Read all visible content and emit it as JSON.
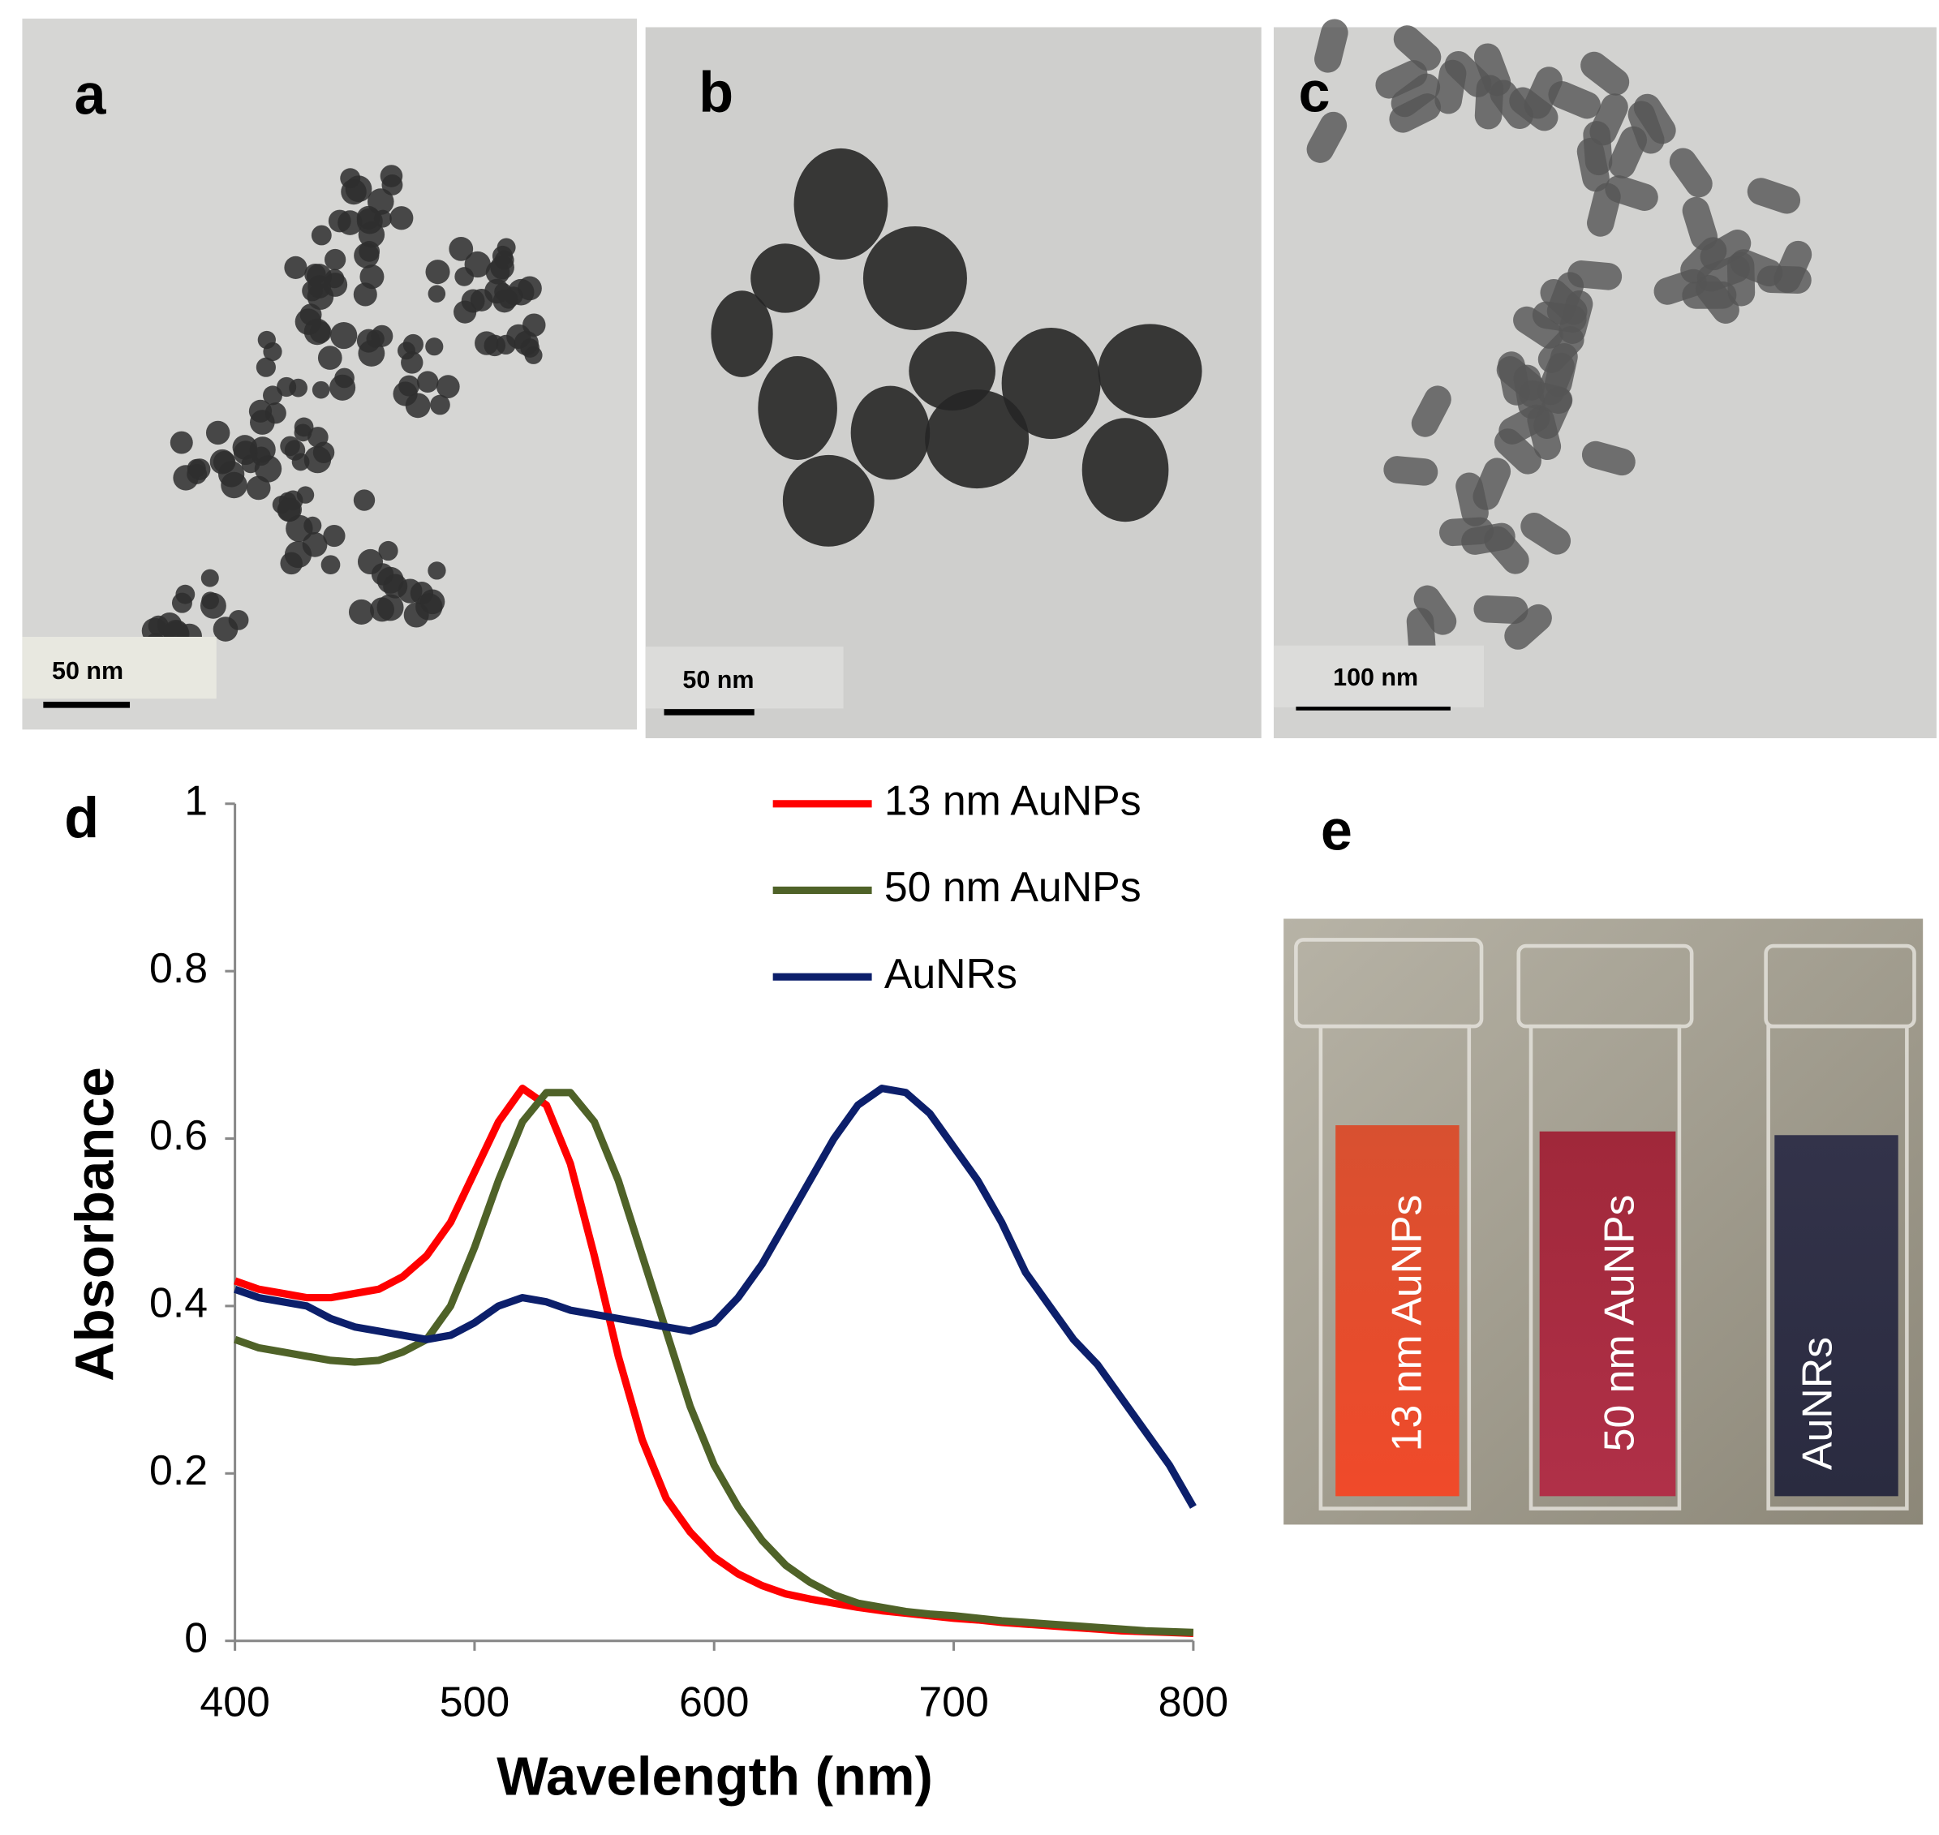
{
  "panels": [
    {
      "label": "a",
      "scale_bar": "50 nm"
    },
    {
      "label": "b",
      "scale_bar": "50 nm"
    },
    {
      "label": "c",
      "scale_bar": "100 nm"
    }
  ],
  "photo": {
    "label": "e",
    "samples": [
      "13 nm AuNPs",
      "50 nm AuNPs",
      "AuNRs"
    ]
  },
  "chart_data": {
    "type": "line",
    "panel_label": "d",
    "x_label": "Wavelength (nm)",
    "y_label": "Absorbance",
    "x": [
      400,
      410,
      420,
      430,
      440,
      450,
      460,
      470,
      480,
      490,
      500,
      510,
      520,
      530,
      540,
      550,
      560,
      570,
      580,
      590,
      600,
      610,
      620,
      630,
      640,
      650,
      660,
      670,
      680,
      690,
      700,
      710,
      720,
      730,
      740,
      750,
      760,
      770,
      780,
      790,
      800
    ],
    "series": [
      {
        "name": "13 nm AuNPs",
        "color": "#ff0000",
        "values": [
          0.43,
          0.42,
          0.415,
          0.41,
          0.41,
          0.415,
          0.42,
          0.435,
          0.46,
          0.5,
          0.56,
          0.62,
          0.66,
          0.64,
          0.57,
          0.46,
          0.34,
          0.24,
          0.17,
          0.13,
          0.1,
          0.08,
          0.066,
          0.056,
          0.05,
          0.045,
          0.04,
          0.036,
          0.033,
          0.03,
          0.027,
          0.025,
          0.022,
          0.02,
          0.018,
          0.016,
          0.014,
          0.012,
          0.011,
          0.01,
          0.009
        ]
      },
      {
        "name": "50 nm AuNPs",
        "color": "#4f6228",
        "values": [
          0.36,
          0.35,
          0.345,
          0.34,
          0.335,
          0.333,
          0.335,
          0.345,
          0.36,
          0.4,
          0.47,
          0.55,
          0.62,
          0.655,
          0.655,
          0.62,
          0.55,
          0.46,
          0.37,
          0.28,
          0.21,
          0.16,
          0.12,
          0.09,
          0.07,
          0.055,
          0.045,
          0.04,
          0.035,
          0.032,
          0.03,
          0.027,
          0.024,
          0.022,
          0.02,
          0.018,
          0.016,
          0.014,
          0.012,
          0.011,
          0.01
        ]
      },
      {
        "name": "AuNRs",
        "color": "#0c1f6b",
        "values": [
          0.42,
          0.41,
          0.405,
          0.4,
          0.385,
          0.375,
          0.37,
          0.365,
          0.36,
          0.365,
          0.38,
          0.4,
          0.41,
          0.405,
          0.395,
          0.39,
          0.385,
          0.38,
          0.375,
          0.37,
          0.38,
          0.41,
          0.45,
          0.5,
          0.55,
          0.6,
          0.64,
          0.66,
          0.655,
          0.63,
          0.59,
          0.55,
          0.5,
          0.44,
          0.4,
          0.36,
          0.33,
          0.29,
          0.25,
          0.21,
          0.16
        ]
      }
    ],
    "xlim": [
      400,
      800
    ],
    "xticks": [
      400,
      500,
      600,
      700,
      800
    ],
    "ylim": [
      0,
      1
    ],
    "yticks": [
      0,
      0.2,
      0.4,
      0.6,
      0.8,
      1
    ]
  }
}
